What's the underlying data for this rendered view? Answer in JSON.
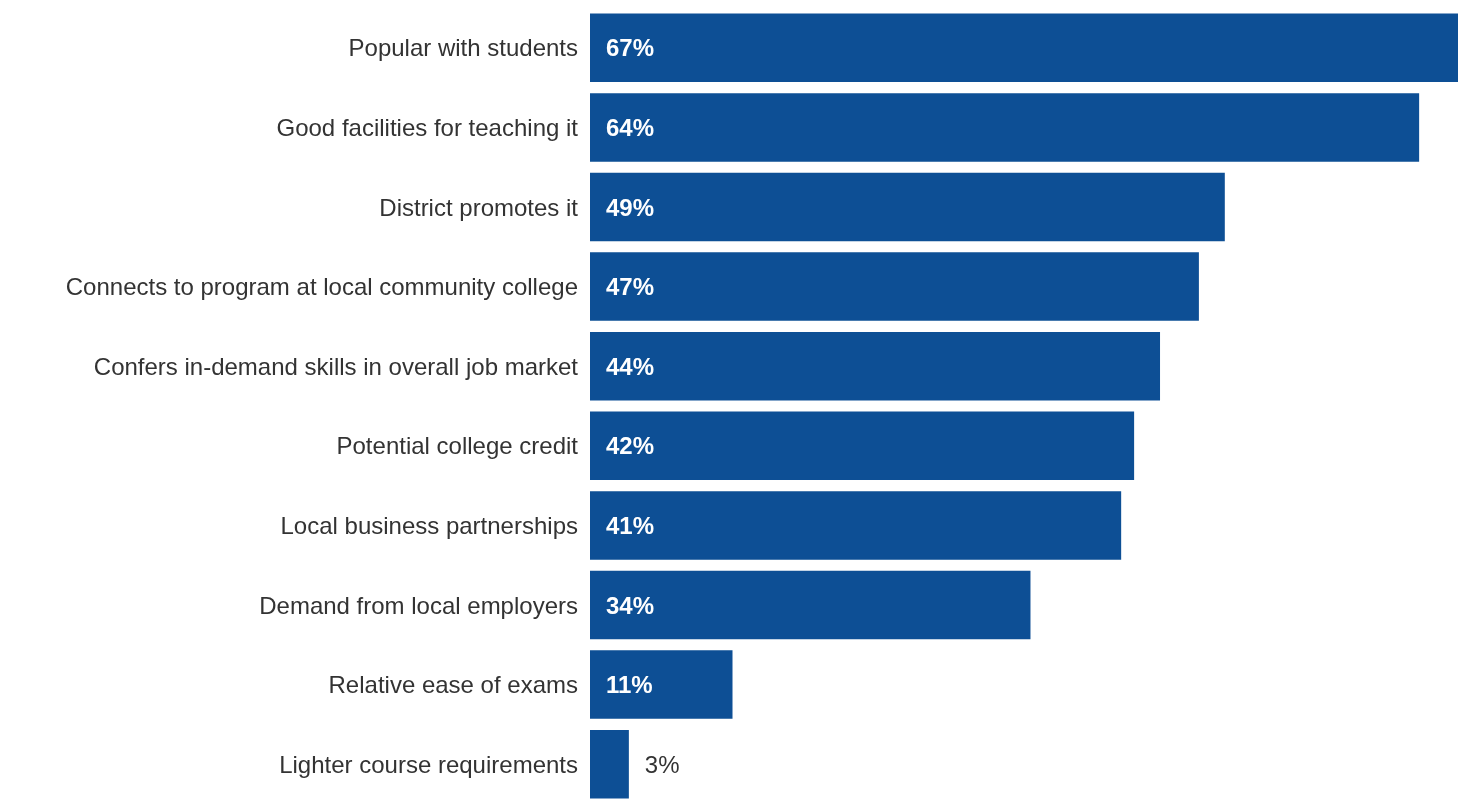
{
  "chart_data": {
    "type": "bar",
    "orientation": "horizontal",
    "categories": [
      "Popular with students",
      "Good facilities for teaching it",
      "District promotes it",
      "Connects to program at local community college",
      "Confers in-demand skills in overall job market",
      "Potential college credit",
      "Local business partnerships",
      "Demand from local employers",
      "Relative ease of exams",
      "Lighter course requirements"
    ],
    "values": [
      67,
      64,
      49,
      47,
      44,
      42,
      41,
      34,
      11,
      3
    ],
    "value_labels": [
      "67%",
      "64%",
      "49%",
      "47%",
      "44%",
      "42%",
      "41%",
      "34%",
      "11%",
      "3%"
    ],
    "color": "#0d4f95"
  }
}
